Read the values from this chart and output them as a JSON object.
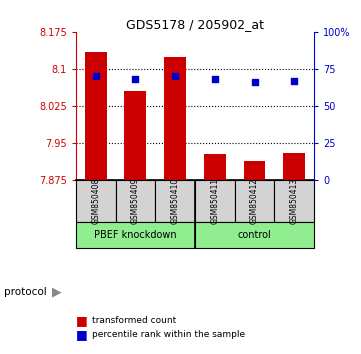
{
  "title": "GDS5178 / 205902_at",
  "samples": [
    "GSM850408",
    "GSM850409",
    "GSM850410",
    "GSM850411",
    "GSM850412",
    "GSM850413"
  ],
  "group_labels": [
    "PBEF knockdown",
    "control"
  ],
  "transformed_count": [
    8.135,
    8.055,
    8.125,
    7.928,
    7.915,
    7.93
  ],
  "percentile_rank": [
    70,
    68,
    70,
    68,
    66,
    67
  ],
  "ymin": 7.875,
  "ymax": 8.175,
  "yticks": [
    7.875,
    7.95,
    8.025,
    8.1,
    8.175
  ],
  "right_yticks": [
    0,
    25,
    50,
    75,
    100
  ],
  "right_yticklabels": [
    "0",
    "25",
    "50",
    "75",
    "100%"
  ],
  "bar_color": "#cc0000",
  "dot_color": "#0000cc",
  "group_bg_color": "#90EE90",
  "sample_bg_color": "#d3d3d3",
  "plot_bg_color": "#ffffff",
  "left_axis_color": "#cc0000",
  "right_axis_color": "#0000cc",
  "grid_yticks": [
    7.95,
    8.025,
    8.1
  ]
}
